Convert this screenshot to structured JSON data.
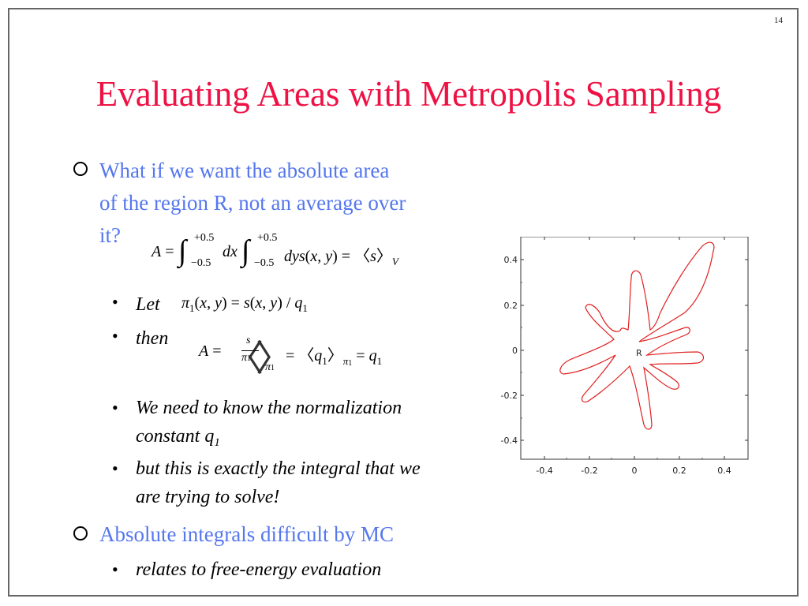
{
  "page_number": "14",
  "title": "Evaluating Areas with Metropolis Sampling",
  "bullets": {
    "b1_line1": "What if we want the absolute area",
    "b1_line2": "of the region R, not an average over",
    "b1_line3": "it?",
    "let": "Let",
    "then": "then",
    "sub1_line1": "We need to know the normalization",
    "sub1_line2": "constant q",
    "sub1_line2_subscript": "1",
    "sub2_line1": "but this is exactly the integral that we",
    "sub2_line2": "are trying to solve!",
    "b2": "Absolute integrals difficult by MC",
    "b2_sub": "relates to free-energy evaluation"
  },
  "plot": {
    "region_label": "R",
    "x_ticks": [
      "-0.4",
      "-0.2",
      "0",
      "0.2",
      "0.4"
    ],
    "y_ticks": [
      "0.4",
      "0.2",
      "0",
      "-0.2",
      "-0.4"
    ],
    "curve_color": "#e02020"
  }
}
